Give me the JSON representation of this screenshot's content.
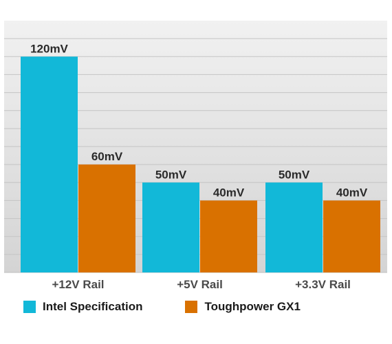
{
  "chart_data": {
    "type": "bar",
    "categories": [
      "+12V Rail",
      "+5V Rail",
      "+3.3V Rail"
    ],
    "series": [
      {
        "name": "Intel Specification",
        "values": [
          120,
          50,
          50
        ],
        "labels": [
          "120mV",
          "50mV",
          "50mV"
        ],
        "color": "#12b8d8"
      },
      {
        "name": "Toughpower GX1",
        "values": [
          60,
          40,
          40
        ],
        "labels": [
          "60mV",
          "40mV",
          "40mV"
        ],
        "color": "#d97100"
      }
    ],
    "title": "",
    "xlabel": "",
    "ylabel": "",
    "ylim": [
      0,
      140
    ],
    "grid": true,
    "legend_position": "bottom-left",
    "colors": {
      "background_top": "#ececec",
      "background_bottom": "#d9d9d9",
      "grid": "#c4c4c4"
    }
  }
}
